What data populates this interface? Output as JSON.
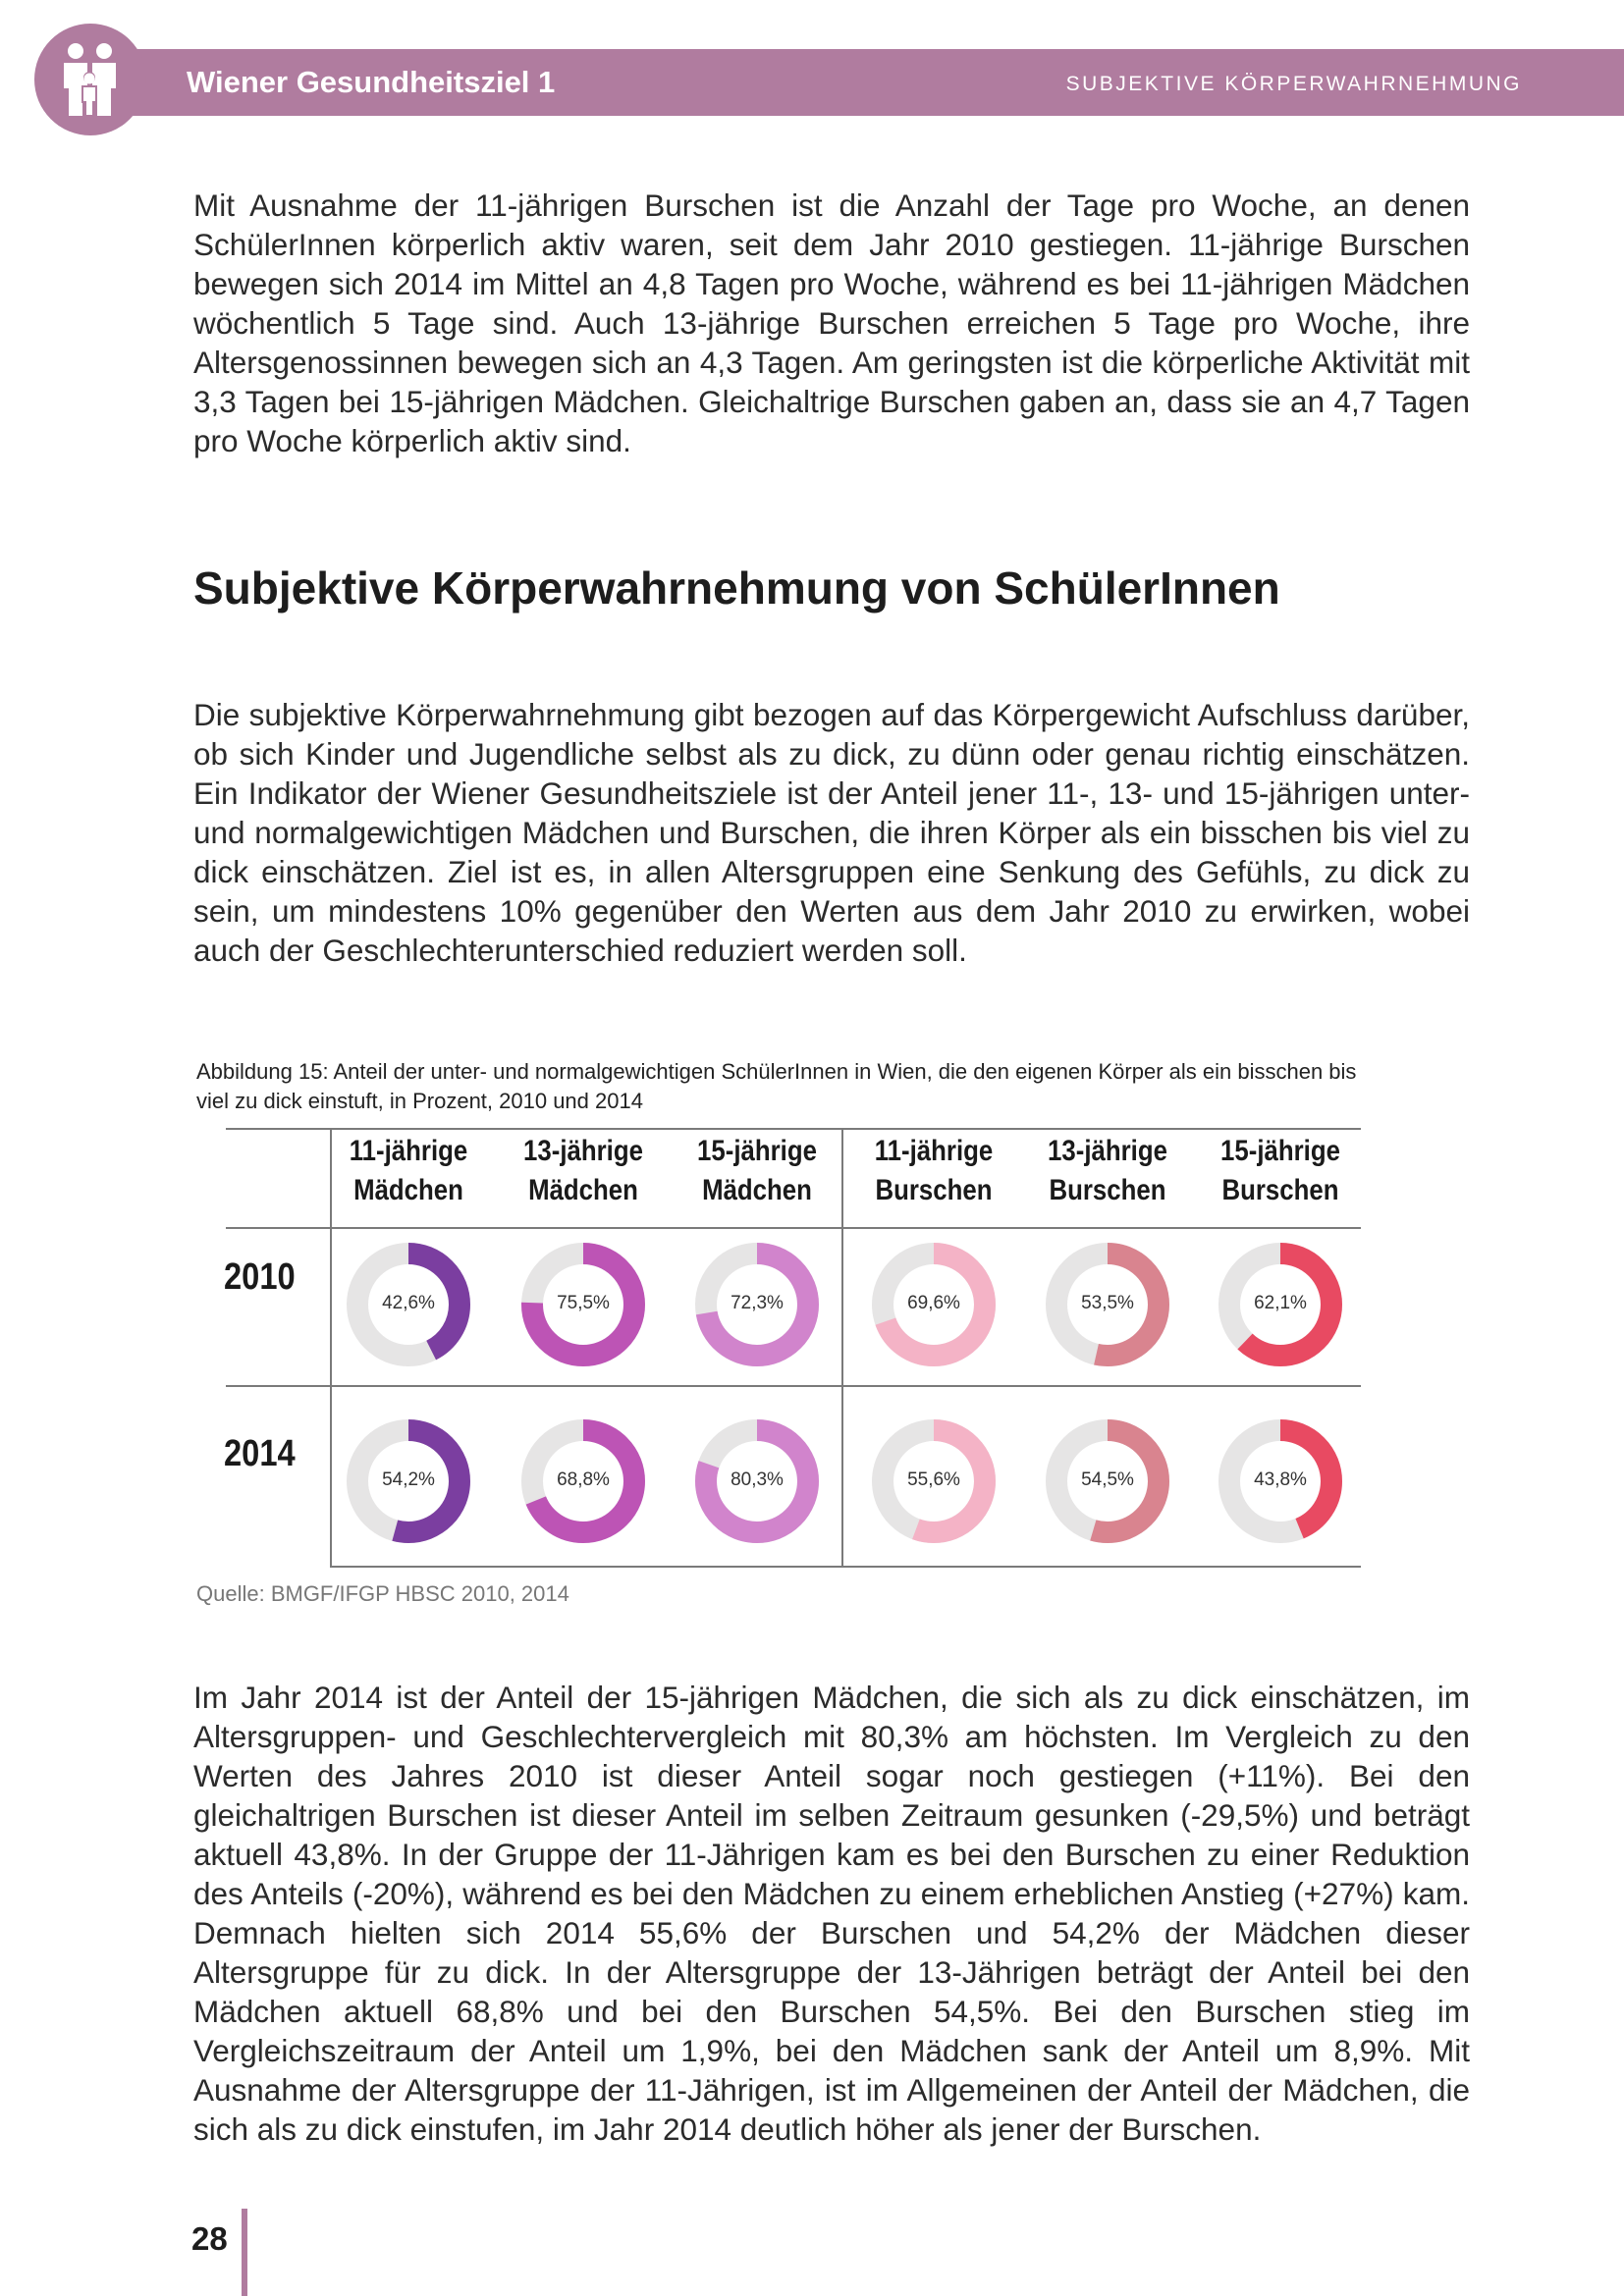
{
  "header": {
    "title": "Wiener Gesundheitsziel 1",
    "section": "SUBJEKTIVE KÖRPERWAHRNEHMUNG",
    "accent_color": "#b07c9f",
    "logo_icon": "family-icon"
  },
  "paragraphs": {
    "p1": "Mit Ausnahme der 11-jährigen Burschen ist die Anzahl der Tage pro Woche, an denen SchülerInnen körperlich aktiv waren, seit dem Jahr 2010 gestiegen. 11-jährige Burschen bewegen sich 2014 im Mittel an 4,8 Tagen pro Woche, während es bei 11-jährigen Mädchen wöchentlich 5 Tage sind. Auch 13-jährige Burschen erreichen 5 Tage pro Woche, ihre Altersgenossinnen bewegen sich an 4,3 Tagen. Am geringsten ist die körperliche Aktivität mit 3,3 Tagen bei 15-jährigen Mädchen. Gleichaltrige Burschen gaben an, dass sie an 4,7 Tagen pro Woche körperlich aktiv sind.",
    "heading": "Subjektive Körperwahrnehmung von SchülerInnen",
    "p2": "Die subjektive Körperwahrnehmung gibt bezogen auf das Körpergewicht Aufschluss darüber, ob sich Kinder und Jugendliche selbst als zu dick, zu dünn oder genau richtig einschätzen. Ein Indikator der Wiener Gesundheitsziele ist der Anteil jener 11-, 13- und 15-jährigen unter- und normalgewichtigen Mädchen und Burschen, die ihren Körper als ein bisschen bis viel zu dick einschätzen. Ziel ist es, in allen Altersgruppen eine Senkung des Gefühls, zu dick zu sein, um mindestens 10% gegenüber den Werten aus dem Jahr 2010 zu erwirken, wobei auch der Geschlechterunterschied reduziert werden soll.",
    "p3": "Im Jahr 2014 ist der Anteil der 15-jährigen Mädchen, die sich als zu dick einschätzen, im Altersgruppen- und Geschlechtervergleich mit 80,3% am höchsten. Im Vergleich zu den Werten des Jahres 2010 ist dieser Anteil sogar noch gestiegen (+11%). Bei den gleichaltrigen Burschen ist dieser Anteil im selben Zeitraum gesunken (-29,5%) und beträgt aktuell 43,8%. In der Gruppe der 11-Jährigen kam es bei den Burschen zu einer Reduktion des Anteils (-20%), während es bei den Mädchen zu einem erheblichen Anstieg (+27%) kam. Demnach hielten sich 2014 55,6% der Burschen und 54,2% der Mädchen dieser Altersgruppe für zu dick. In der Altersgruppe der 13-Jährigen beträgt der Anteil bei den Mädchen aktuell 68,8% und bei den Burschen 54,5%. Bei den Burschen stieg im Vergleichszeitraum der Anteil um 1,9%, bei den Mädchen sank der Anteil um 8,9%. Mit Ausnahme der Altersgruppe der 11-Jährigen, ist im Allgemeinen der Anteil der Mädchen, die sich als zu dick einstufen, im Jahr 2014 deutlich höher als jener der Burschen."
  },
  "figure": {
    "caption": "Abbildung 15: Anteil der unter- und normalgewichtigen SchülerInnen in Wien, die den eigenen Körper als ein bisschen bis viel zu dick einstuft, in Prozent, 2010 und 2014",
    "source": "Quelle: BMGF/IFGP HBSC 2010, 2014",
    "track_color": "#e6e5e5",
    "columns": [
      {
        "line1": "11-jährige",
        "line2": "Mädchen",
        "color": "#7b3ea0"
      },
      {
        "line1": "13-jährige",
        "line2": "Mädchen",
        "color": "#bd54b5"
      },
      {
        "line1": "15-jährige",
        "line2": "Mädchen",
        "color": "#d184cc"
      },
      {
        "line1": "11-jährige",
        "line2": "Burschen",
        "color": "#f4b3c6"
      },
      {
        "line1": "13-jährige",
        "line2": "Burschen",
        "color": "#d9848f"
      },
      {
        "line1": "15-jährige",
        "line2": "Burschen",
        "color": "#e84a62"
      }
    ],
    "rows": [
      {
        "year": "2010",
        "labels": [
          "42,6%",
          "75,5%",
          "72,3%",
          "69,6%",
          "53,5%",
          "62,1%"
        ],
        "values": [
          42.6,
          75.5,
          72.3,
          69.6,
          53.5,
          62.1
        ]
      },
      {
        "year": "2014",
        "labels": [
          "54,2%",
          "68,8%",
          "80,3%",
          "55,6%",
          "54,5%",
          "43,8%"
        ],
        "values": [
          54.2,
          68.8,
          80.3,
          55.6,
          54.5,
          43.8
        ]
      }
    ]
  },
  "footer": {
    "page_number": "28"
  }
}
